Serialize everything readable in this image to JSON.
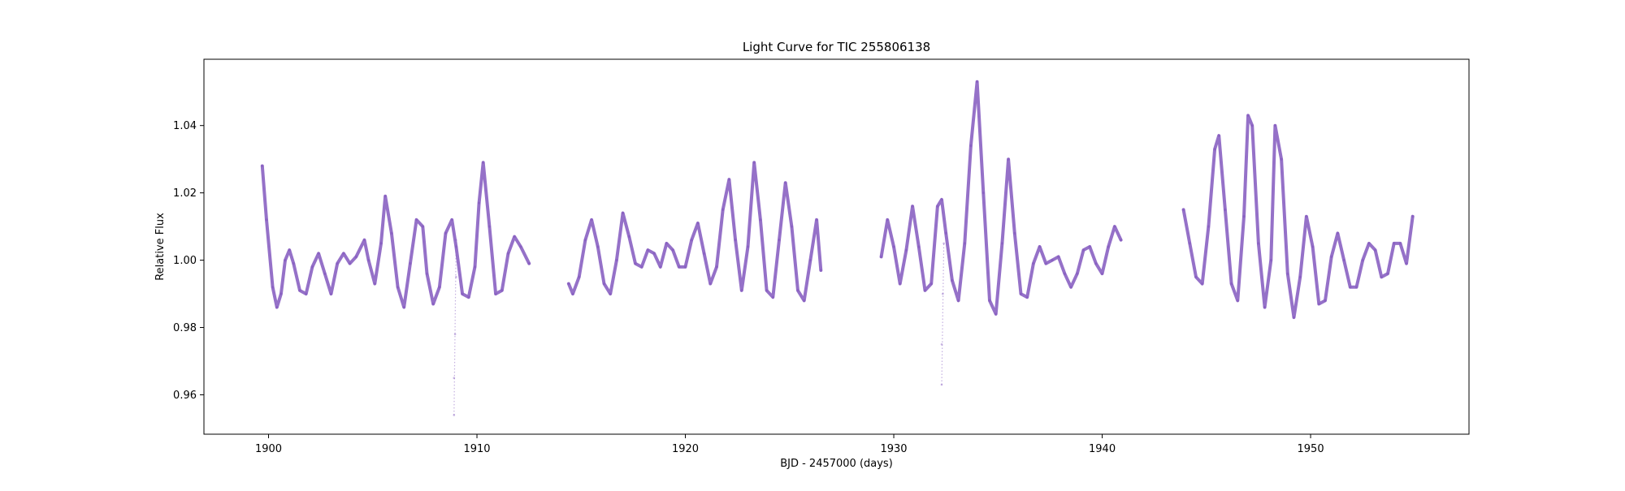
{
  "chart_data": {
    "type": "scatter",
    "title": "Light Curve for TIC 255806138",
    "xlabel": "BJD - 2457000 (days)",
    "ylabel": "Relative Flux",
    "xlim": [
      1896.9,
      1957.6
    ],
    "ylim": [
      0.9483,
      1.0597
    ],
    "xticks": [
      1900,
      1910,
      1920,
      1930,
      1940,
      1950
    ],
    "yticks": [
      0.96,
      0.98,
      1.0,
      1.02,
      1.04
    ],
    "xtick_labels": [
      "1900",
      "1910",
      "1920",
      "1930",
      "1940",
      "1950"
    ],
    "ytick_labels": [
      "0.96",
      "0.98",
      "1.00",
      "1.02",
      "1.04"
    ],
    "grid": false,
    "marker_color": "#8a62c2",
    "series": [
      {
        "segments": [
          {
            "x": [
              1899.7,
              1899.9,
              1900.2,
              1900.4,
              1900.6,
              1900.8,
              1901.0,
              1901.2,
              1901.5,
              1901.8,
              1902.1,
              1902.4,
              1902.7,
              1903.0,
              1903.3,
              1903.6,
              1903.9,
              1904.2,
              1904.6,
              1904.8,
              1905.1,
              1905.4,
              1905.6,
              1905.9,
              1906.2,
              1906.5,
              1906.8,
              1907.1,
              1907.4,
              1907.6,
              1907.9,
              1908.2,
              1908.5,
              1908.8,
              1909.0,
              1909.3,
              1909.6,
              1909.9,
              1910.1,
              1910.3,
              1910.6,
              1910.9,
              1911.2,
              1911.5,
              1911.8,
              1912.1,
              1912.5
            ],
            "y": [
              1.028,
              1.012,
              0.992,
              0.986,
              0.99,
              1.0,
              1.003,
              0.999,
              0.991,
              0.99,
              0.998,
              1.002,
              0.996,
              0.99,
              0.999,
              1.002,
              0.999,
              1.001,
              1.006,
              1.0,
              0.993,
              1.005,
              1.019,
              1.008,
              0.992,
              0.986,
              0.999,
              1.012,
              1.01,
              0.996,
              0.987,
              0.992,
              1.008,
              1.012,
              1.004,
              0.99,
              0.989,
              0.998,
              1.017,
              1.029,
              1.01,
              0.99,
              0.991,
              1.002,
              1.007,
              1.004,
              0.999
            ]
          },
          {
            "x": [
              1914.4,
              1914.6,
              1914.9,
              1915.2,
              1915.5,
              1915.8,
              1916.1,
              1916.4,
              1916.7,
              1917.0,
              1917.3,
              1917.6,
              1917.9,
              1918.2,
              1918.5,
              1918.8,
              1919.1,
              1919.4,
              1919.7,
              1920.0,
              1920.3,
              1920.6,
              1920.9,
              1921.2,
              1921.5,
              1921.8,
              1922.1,
              1922.4,
              1922.7,
              1923.0,
              1923.3,
              1923.6,
              1923.9,
              1924.2,
              1924.5,
              1924.8,
              1925.1,
              1925.4,
              1925.7,
              1926.0,
              1926.3,
              1926.5
            ],
            "y": [
              0.993,
              0.99,
              0.995,
              1.006,
              1.012,
              1.004,
              0.993,
              0.99,
              1.0,
              1.014,
              1.007,
              0.999,
              0.998,
              1.003,
              1.002,
              0.998,
              1.005,
              1.003,
              0.998,
              0.998,
              1.006,
              1.011,
              1.002,
              0.993,
              0.998,
              1.015,
              1.024,
              1.006,
              0.991,
              1.004,
              1.029,
              1.012,
              0.991,
              0.989,
              1.006,
              1.023,
              1.01,
              0.991,
              0.988,
              1.0,
              1.012,
              0.997
            ]
          },
          {
            "x": [
              1929.4,
              1929.7,
              1930.0,
              1930.3,
              1930.6,
              1930.9,
              1931.2,
              1931.5,
              1931.8,
              1932.1,
              1932.3,
              1932.5,
              1932.8,
              1933.1,
              1933.4,
              1933.7,
              1934.0,
              1934.3,
              1934.6,
              1934.9,
              1935.2,
              1935.5,
              1935.8,
              1936.1,
              1936.4,
              1936.7,
              1937.0,
              1937.3,
              1937.6,
              1937.9,
              1938.2,
              1938.5,
              1938.8,
              1939.1,
              1939.4,
              1939.7,
              1940.0,
              1940.3,
              1940.6,
              1940.9
            ],
            "y": [
              1.001,
              1.012,
              1.004,
              0.993,
              1.003,
              1.016,
              1.004,
              0.991,
              0.993,
              1.016,
              1.018,
              1.008,
              0.994,
              0.988,
              1.005,
              1.034,
              1.053,
              1.02,
              0.988,
              0.984,
              1.005,
              1.03,
              1.008,
              0.99,
              0.989,
              0.999,
              1.004,
              0.999,
              1.0,
              1.001,
              0.996,
              0.992,
              0.996,
              1.003,
              1.004,
              0.999,
              0.996,
              1.004,
              1.01,
              1.006
            ]
          },
          {
            "x": [
              1943.9,
              1944.2,
              1944.5,
              1944.8,
              1945.1,
              1945.4,
              1945.6,
              1945.9,
              1946.2,
              1946.5,
              1946.8,
              1947.0,
              1947.2,
              1947.5,
              1947.8,
              1948.1,
              1948.3,
              1948.6,
              1948.9,
              1949.2,
              1949.5,
              1949.8,
              1950.1,
              1950.4,
              1950.7,
              1951.0,
              1951.3,
              1951.6,
              1951.9,
              1952.2,
              1952.5,
              1952.8,
              1953.1,
              1953.4,
              1953.7,
              1954.0,
              1954.3,
              1954.6,
              1954.9
            ],
            "y": [
              1.015,
              1.005,
              0.995,
              0.993,
              1.01,
              1.033,
              1.037,
              1.015,
              0.993,
              0.988,
              1.013,
              1.043,
              1.04,
              1.005,
              0.986,
              1.0,
              1.04,
              1.03,
              0.996,
              0.983,
              0.995,
              1.013,
              1.004,
              0.987,
              0.988,
              1.001,
              1.008,
              1.0,
              0.992,
              0.992,
              1.0,
              1.005,
              1.003,
              0.995,
              0.996,
              1.005,
              1.005,
              0.999,
              1.013
            ]
          }
        ],
        "outliers": [
          {
            "x": 1908.9,
            "y": 0.954
          },
          {
            "x": 1908.9,
            "y": 0.965
          },
          {
            "x": 1908.95,
            "y": 0.978
          },
          {
            "x": 1909.0,
            "y": 0.995
          },
          {
            "x": 1909.0,
            "y": 1.006
          },
          {
            "x": 1932.3,
            "y": 0.963
          },
          {
            "x": 1932.3,
            "y": 0.975
          },
          {
            "x": 1932.35,
            "y": 0.99
          },
          {
            "x": 1932.4,
            "y": 1.005
          }
        ]
      }
    ]
  }
}
